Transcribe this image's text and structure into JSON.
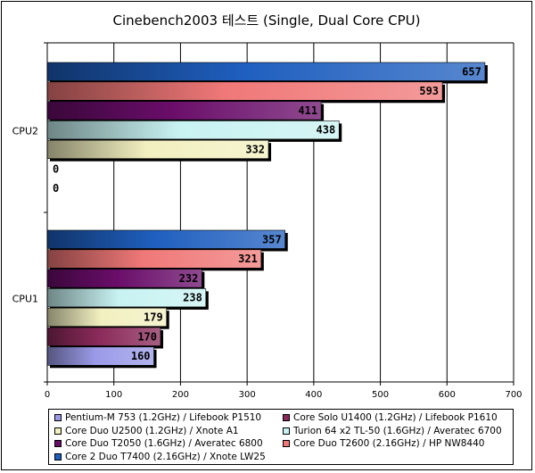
{
  "chart_data": {
    "type": "bar",
    "orientation": "horizontal",
    "title": "Cinebench2003 테스트 (Single, Dual Core CPU)",
    "categories": [
      "CPU2",
      "CPU1"
    ],
    "xlim": [
      0,
      700
    ],
    "xticks": [
      0,
      100,
      200,
      300,
      400,
      500,
      600,
      700
    ],
    "grid": true,
    "legend_position": "bottom",
    "series": [
      {
        "name": "Core 2 Duo T7400 (2.16GHz) / Xnote LW25",
        "color": "#1f5fbf",
        "values": [
          657,
          357
        ]
      },
      {
        "name": "Core Duo T2600 (2.16GHz) / HP NW8440",
        "color": "#f07878",
        "values": [
          593,
          321
        ]
      },
      {
        "name": "Core Duo T2050 (1.6GHz) / Averatec 6800",
        "color": "#6a0d6a",
        "values": [
          411,
          232
        ]
      },
      {
        "name": "Turion 64 x2 TL-50 (1.6GHz) / Averatec 6700",
        "color": "#c8f2f2",
        "values": [
          438,
          238
        ]
      },
      {
        "name": "Core Duo U2500 (1.2GHz) / Xnote A1",
        "color": "#f2f0c0",
        "values": [
          332,
          179
        ]
      },
      {
        "name": "Core Solo U1400 (1.2GHz) / Lifebook P1610",
        "color": "#8a2a5a",
        "values": [
          0,
          170
        ]
      },
      {
        "name": "Pentium-M 753 (1.2GHz) / Lifebook P1510",
        "color": "#9a9ae8",
        "values": [
          0,
          160
        ]
      }
    ],
    "legend_order": [
      "Pentium-M 753 (1.2GHz) / Lifebook P1510",
      "Core Solo U1400 (1.2GHz) / Lifebook P1610",
      "Core Duo U2500 (1.2GHz) / Xnote A1",
      "Turion 64 x2 TL-50 (1.6GHz) / Averatec 6700",
      "Core Duo T2050 (1.6GHz) / Averatec 6800",
      "Core Duo T2600 (2.16GHz) / HP NW8440",
      "Core 2 Duo T7400 (2.16GHz) / Xnote LW25"
    ]
  }
}
